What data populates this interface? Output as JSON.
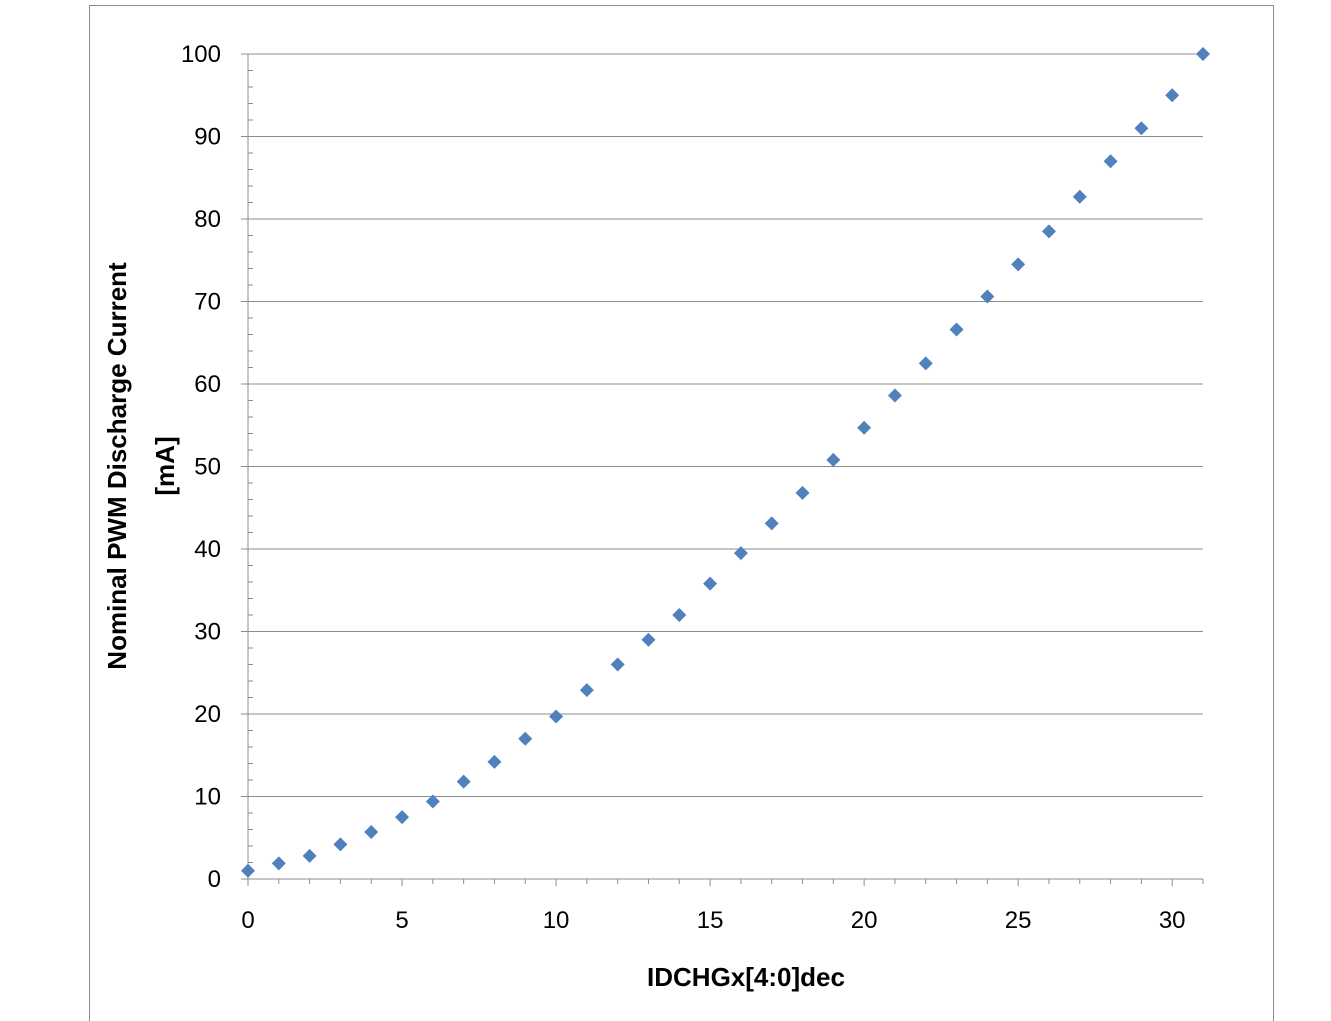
{
  "chart_data": {
    "type": "scatter",
    "title": "",
    "xlabel": "IDCHGx[4:0]dec",
    "ylabel_lines": [
      "Nominal PWM Discharge Current",
      "[mA]"
    ],
    "xlim": [
      0,
      31
    ],
    "ylim": [
      0,
      100
    ],
    "x_ticks": [
      0,
      5,
      10,
      15,
      20,
      25,
      30
    ],
    "y_ticks": [
      0,
      10,
      20,
      30,
      40,
      50,
      60,
      70,
      80,
      90,
      100
    ],
    "grid": "horizontal major",
    "legend": "none",
    "marker": "diamond",
    "marker_color": "#4f81bd",
    "x": [
      0,
      1,
      2,
      3,
      4,
      5,
      6,
      7,
      8,
      9,
      10,
      11,
      12,
      13,
      14,
      15,
      16,
      17,
      18,
      19,
      20,
      21,
      22,
      23,
      24,
      25,
      26,
      27,
      28,
      29,
      30,
      31
    ],
    "y": [
      1.0,
      1.9,
      2.8,
      4.2,
      5.7,
      7.5,
      9.4,
      11.8,
      14.2,
      17.0,
      19.7,
      22.9,
      26.0,
      29.0,
      32.0,
      35.8,
      39.5,
      43.1,
      46.8,
      50.8,
      54.7,
      58.6,
      62.5,
      66.6,
      70.6,
      74.5,
      78.5,
      82.7,
      87.0,
      91.0,
      95.0,
      100.0
    ]
  }
}
